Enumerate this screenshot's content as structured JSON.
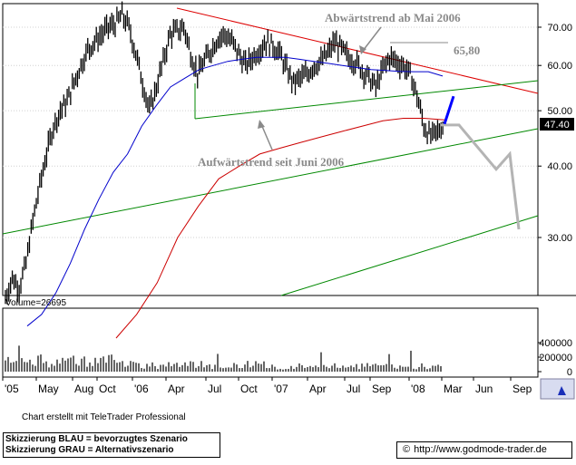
{
  "chart_data": {
    "type": "candlestick",
    "price_axis_ticks": [
      {
        "value": 70,
        "label": "70.00"
      },
      {
        "value": 60,
        "label": "60.00"
      },
      {
        "value": 50,
        "label": "50.00"
      },
      {
        "value": 40,
        "label": "40.00"
      },
      {
        "value": 30,
        "label": "30.00"
      }
    ],
    "last_price_label": "47.40",
    "last_price": 47.4,
    "volume_label": "Volume=26695",
    "volume_ticks": [
      {
        "value": 400000,
        "label": "400000"
      },
      {
        "value": 200000,
        "label": "200000"
      },
      {
        "value": 0,
        "label": "0"
      }
    ],
    "x_tick_labels": [
      "'05",
      "May",
      "Aug",
      "Oct",
      "'06",
      "Apr",
      "Jul",
      "Oct",
      "'07",
      "Apr",
      "Jul",
      "Sep",
      "'08",
      "Mar",
      "Jun",
      "Sep"
    ],
    "annotations": {
      "downtrend": "Abwärtstrend ab Mai 2006",
      "resistance_value": "65,80",
      "uptrend": "Aufwärtstrend seit Juni 2006"
    },
    "price_series_close": [
      23.5,
      25.5,
      24.5,
      27,
      32,
      37,
      42,
      47,
      50,
      52,
      56,
      60,
      64,
      66,
      68,
      70,
      71,
      73.5,
      70,
      63,
      56,
      50,
      55,
      61,
      68,
      69,
      70,
      63,
      58,
      61,
      64,
      67,
      68,
      66,
      63,
      60,
      62,
      64,
      66,
      65,
      63,
      59,
      56,
      57,
      58,
      60,
      61,
      63,
      66,
      64,
      62,
      61,
      59,
      57,
      55,
      59,
      62,
      61,
      60,
      58,
      53,
      47,
      45,
      46,
      47.4
    ],
    "ma_blue": [
      21,
      22,
      24,
      27,
      31,
      35,
      39,
      42,
      47,
      51,
      55,
      57,
      59,
      60,
      61,
      61.5,
      62,
      62,
      62,
      61.5,
      61,
      60.5,
      60,
      59.5,
      59,
      58.8,
      58.6,
      58.5,
      58.5,
      57.5
    ],
    "ma_red": [
      20,
      22,
      25,
      30,
      34,
      38,
      40,
      42,
      43,
      44,
      45,
      46,
      47,
      48,
      48.5,
      48.5,
      48.2
    ],
    "scenario_blue": [
      [
        47.4,
        47.0
      ],
      [
        53.0,
        52.5
      ]
    ],
    "scenario_grey": [
      47.2,
      47.2,
      39.5,
      42.0,
      31.0
    ]
  },
  "footer": {
    "credit": "Chart erstellt mit TeleTrader Professional",
    "legend_blue": "Skizzierung BLAU = bevorzugtes Szenario",
    "legend_grey": "Skizzierung GRAU = Alternativszenario",
    "copyright_symbol": "©",
    "url": "http://www.godmode-trader.de"
  },
  "colors": {
    "candles": "#000000",
    "ma_blue": "#0000cc",
    "ma_red": "#cc0000",
    "trend_red": "#dd0000",
    "trend_green": "#008800",
    "scenario_blue": "#0000ff",
    "scenario_grey": "#b4b4b4",
    "annotation": "#8a8a8a"
  }
}
